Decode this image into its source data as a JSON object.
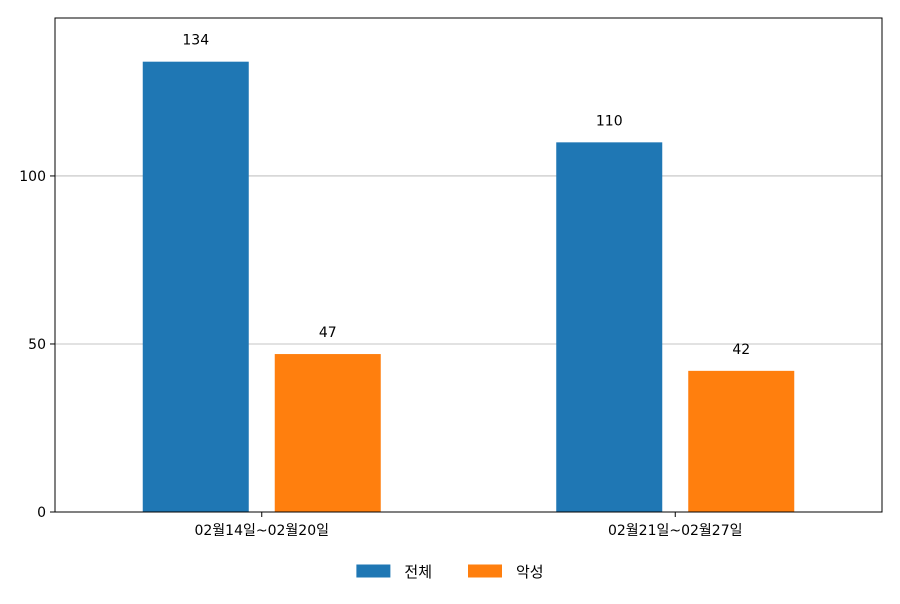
{
  "chart_data": {
    "type": "bar",
    "title": "",
    "xlabel": "",
    "ylabel": "",
    "categories": [
      "02월14일~02월20일",
      "02월21일~02월27일"
    ],
    "series": [
      {
        "name": "전체",
        "values": [
          134,
          110
        ],
        "color": "#1f77b4"
      },
      {
        "name": "악성",
        "values": [
          47,
          42
        ],
        "color": "#ff7f0e"
      }
    ],
    "ylim": [
      0,
      147
    ],
    "yticks": [
      0,
      50,
      100
    ],
    "grid": "horizontal",
    "legend_position": "bottom-center",
    "data_labels": true
  }
}
